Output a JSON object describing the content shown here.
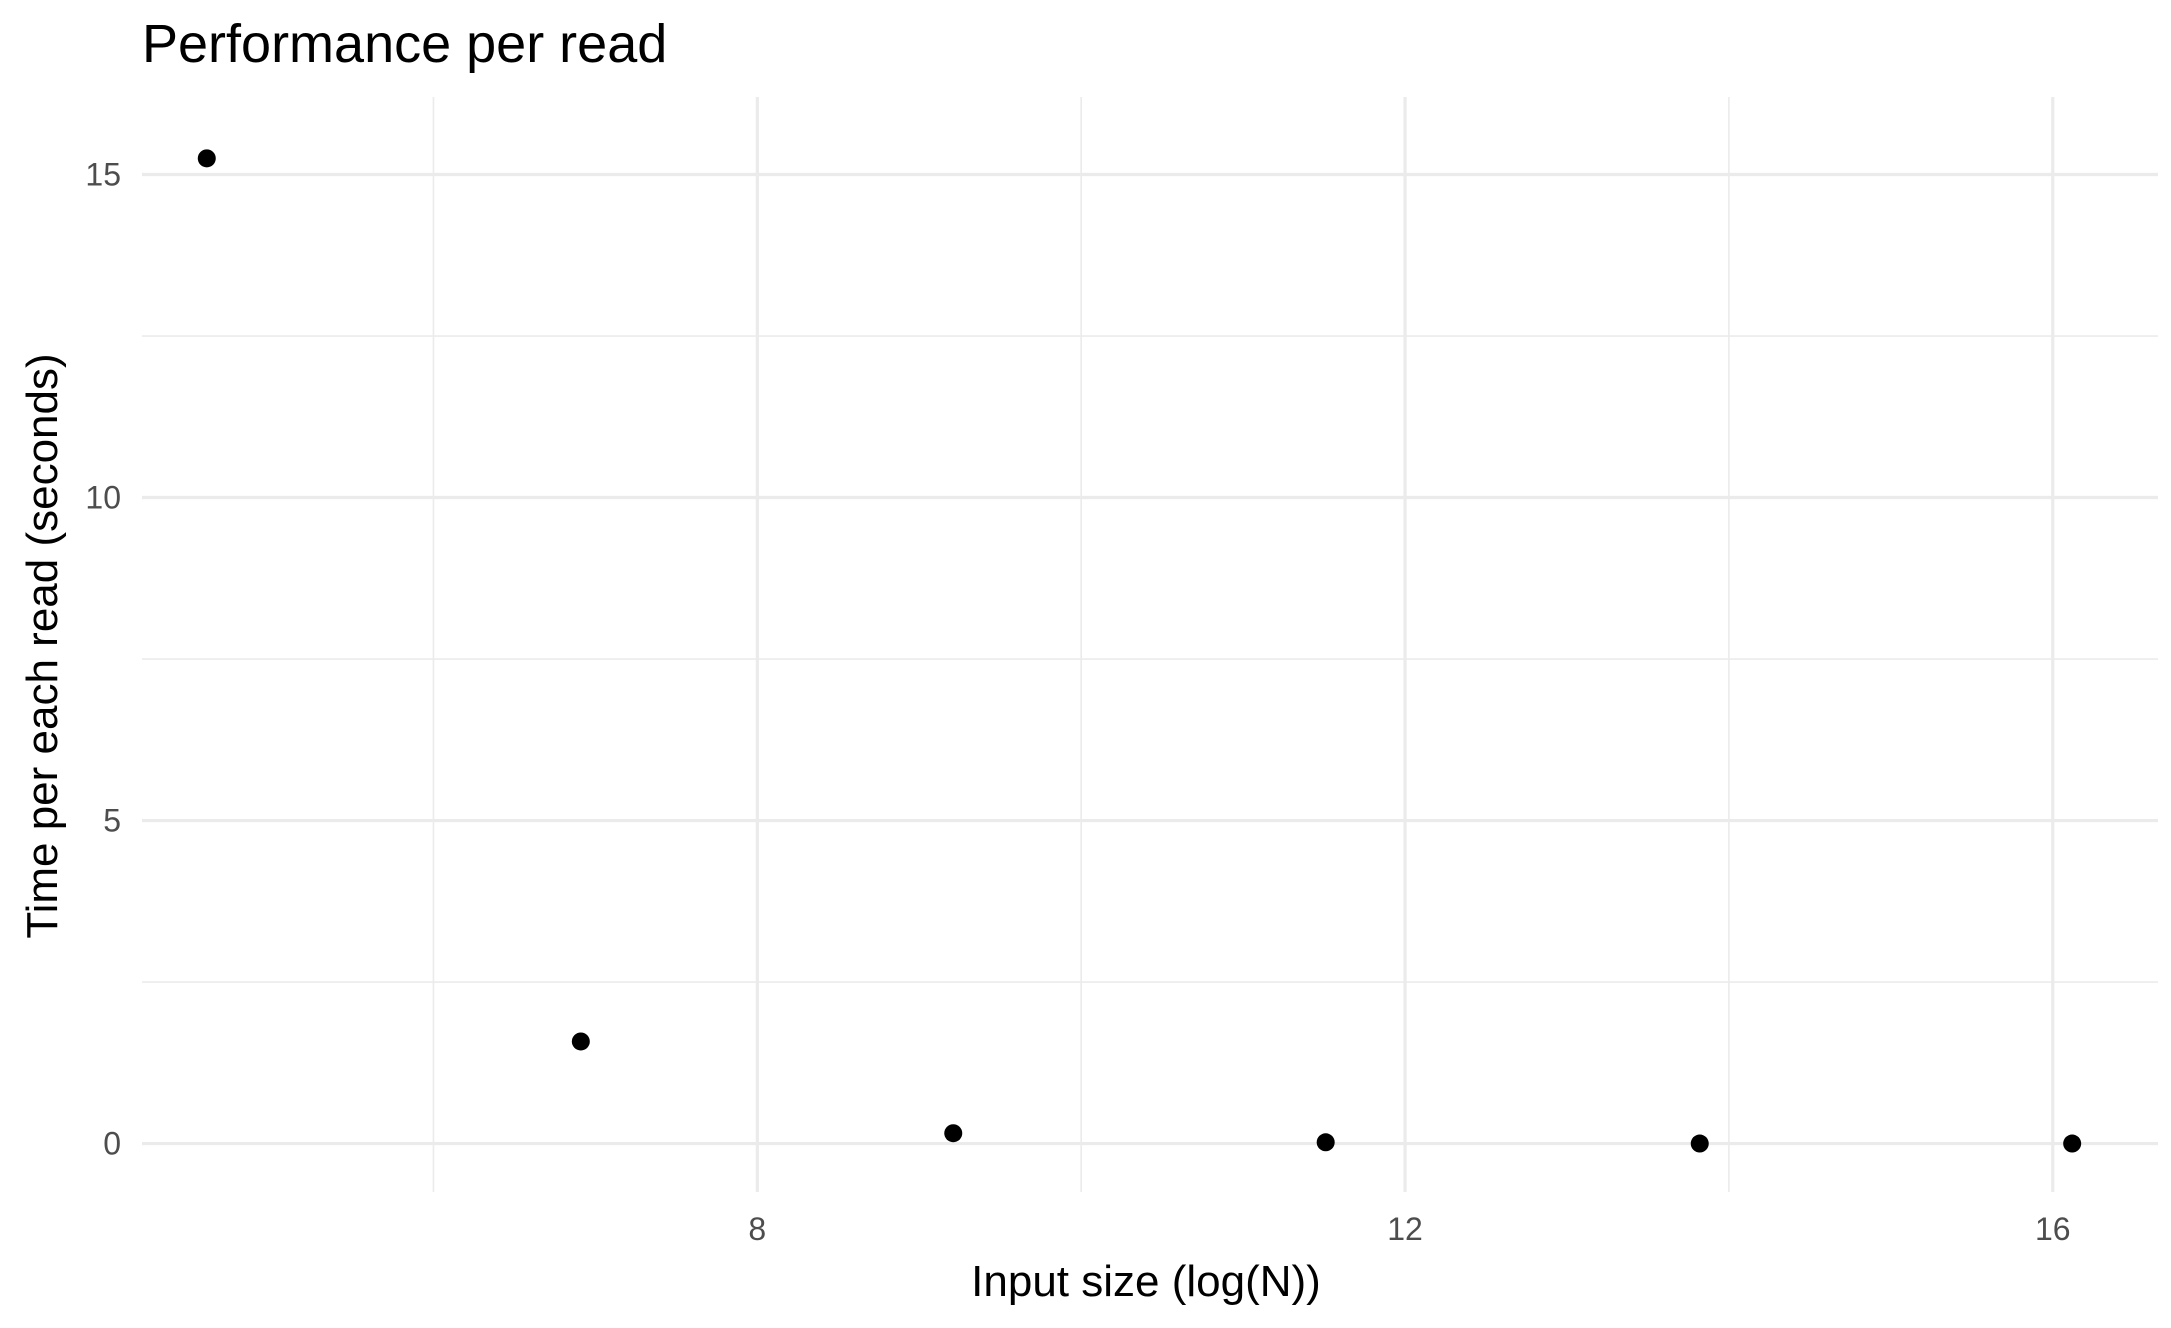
{
  "chart_data": {
    "type": "scatter",
    "title": "Performance per read",
    "xlabel": "Input size (log(N))",
    "ylabel": "Time per each read (seconds)",
    "xlim": [
      4.2,
      16.65
    ],
    "ylim": [
      -0.75,
      16.2
    ],
    "x_ticks": [
      8,
      12,
      16
    ],
    "x_tick_labels": [
      "8",
      "12",
      "16"
    ],
    "x_minor_ticks": [
      6,
      10,
      14
    ],
    "y_ticks": [
      0,
      5,
      10,
      15
    ],
    "y_tick_labels": [
      "0",
      "5",
      "10",
      "15"
    ],
    "y_minor_ticks": [
      2.5,
      7.5,
      12.5
    ],
    "grid": true,
    "legend": "none",
    "point_color": "#000000",
    "points": [
      {
        "x": 4.6,
        "y": 15.25
      },
      {
        "x": 6.91,
        "y": 1.58
      },
      {
        "x": 9.21,
        "y": 0.16
      },
      {
        "x": 11.51,
        "y": 0.02
      },
      {
        "x": 13.82,
        "y": 0.0
      },
      {
        "x": 16.12,
        "y": 0.0
      }
    ]
  }
}
